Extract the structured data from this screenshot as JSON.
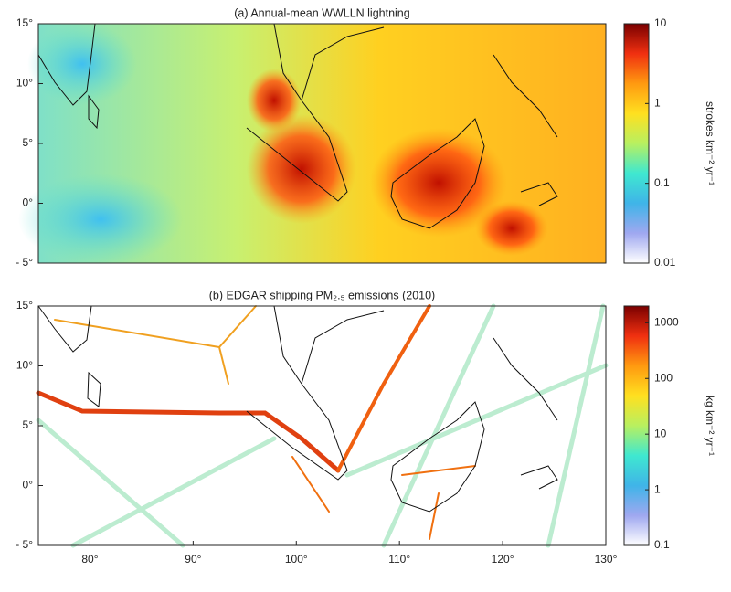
{
  "chart_data": [
    {
      "type": "heatmap",
      "title": "(a) Annual-mean WWLLN lightning",
      "xlim": [
        75,
        130
      ],
      "ylim": [
        -5,
        15
      ],
      "yticks": [
        {
          "value": -5,
          "label": "- 5°"
        },
        {
          "value": 0,
          "label": "0°"
        },
        {
          "value": 5,
          "label": "5°"
        },
        {
          "value": 10,
          "label": "10°"
        },
        {
          "value": 15,
          "label": "15°"
        }
      ],
      "colorbar": {
        "label": "strokes km⁻² yr⁻¹",
        "scale": "log",
        "clim": [
          0.01,
          10
        ],
        "ticks": [
          0.01,
          0.1,
          1,
          10
        ],
        "colormap": [
          "#ffffff",
          "#9fa8f0",
          "#3fb4e8",
          "#3fe8d0",
          "#b8f060",
          "#ffe020",
          "#ff9a10",
          "#f03010",
          "#7a0000"
        ]
      }
    },
    {
      "type": "heatmap",
      "title": "(b) EDGAR shipping PM₂.₅ emissions (2010)",
      "xlim": [
        75,
        130
      ],
      "ylim": [
        -5,
        15
      ],
      "xticks": [
        {
          "value": 80,
          "label": "80°"
        },
        {
          "value": 90,
          "label": "90°"
        },
        {
          "value": 100,
          "label": "100°"
        },
        {
          "value": 110,
          "label": "110°"
        },
        {
          "value": 120,
          "label": "120°"
        },
        {
          "value": 130,
          "label": "130°"
        }
      ],
      "yticks": [
        {
          "value": -5,
          "label": "- 5°"
        },
        {
          "value": 0,
          "label": "0°"
        },
        {
          "value": 5,
          "label": "5°"
        },
        {
          "value": 10,
          "label": "10°"
        },
        {
          "value": 15,
          "label": "15°"
        }
      ],
      "colorbar": {
        "label": "kg km⁻² yr⁻¹",
        "scale": "log",
        "clim": [
          0.1,
          2000
        ],
        "ticks": [
          0.1,
          1,
          10,
          100,
          1000
        ],
        "colormap": [
          "#ffffff",
          "#9fa8f0",
          "#3fb4e8",
          "#3fe8d0",
          "#b8f060",
          "#ffe020",
          "#ff9a10",
          "#f03010",
          "#7a0000"
        ]
      }
    }
  ]
}
